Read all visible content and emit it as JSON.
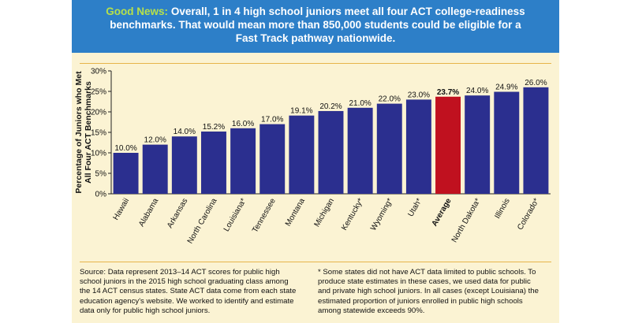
{
  "header": {
    "lead": "Good News:",
    "line1_rest": " Overall, 1 in 4 high school juniors meet all four ACT college-readiness",
    "line2": "benchmarks. That would mean more than 850,000 students could be eligible for a",
    "line3": "Fast Track pathway nationwide."
  },
  "colors": {
    "banner": "#2d7fc8",
    "lead_text": "#b6e04a",
    "bar": "#2b2f8f",
    "highlight_bar": "#c0111f",
    "panel": "#fbf3d3",
    "divider": "#e7b44a"
  },
  "chart_data": {
    "type": "bar",
    "title": "",
    "xlabel": "",
    "ylabel_lines": [
      "Percentage of Juniors who Met",
      "All Four ACT Benchmarks"
    ],
    "ylim": [
      0,
      30
    ],
    "yticks": [
      0,
      5,
      10,
      15,
      20,
      25,
      30
    ],
    "ytick_labels": [
      "0%",
      "5%",
      "10%",
      "15%",
      "20%",
      "25%",
      "30%"
    ],
    "grid": false,
    "highlight_category": "Average",
    "categories": [
      "Hawaii",
      "Alabama",
      "Arkansas",
      "North Carolina",
      "Louisiana*",
      "Tennessee",
      "Montana",
      "Michigan",
      "Kentucky*",
      "Wyoming*",
      "Utah*",
      "Average",
      "North Dakota*",
      "Illinois",
      "Colorado*"
    ],
    "values": [
      10.0,
      12.0,
      14.0,
      15.2,
      16.0,
      17.0,
      19.1,
      20.2,
      21.0,
      22.0,
      23.0,
      23.7,
      24.0,
      24.9,
      26.0
    ],
    "value_labels": [
      "10.0%",
      "12.0%",
      "14.0%",
      "15.2%",
      "16.0%",
      "17.0%",
      "19.1%",
      "20.2%",
      "21.0%",
      "22.0%",
      "23.0%",
      "23.7%",
      "24.0%",
      "24.9%",
      "26.0%"
    ]
  },
  "footnotes": {
    "source_lines": [
      "Source: Data represent 2013–14 ACT scores for public high",
      "school juniors in the 2015 high school graduating class among",
      "the 14 ACT census states. State ACT data come from each state",
      "education agency's website. We worked to identify and estimate",
      "data only for public high school juniors."
    ],
    "asterisk_lines": [
      "* Some states did not have ACT data limited to public schools. To",
      "produce state estimates in these cases, we used data for public",
      "and private high school juniors. In all cases (except Louisiana) the",
      "estimated proportion of juniors enrolled in public high schools",
      "among statewide exceeds 90%."
    ]
  }
}
